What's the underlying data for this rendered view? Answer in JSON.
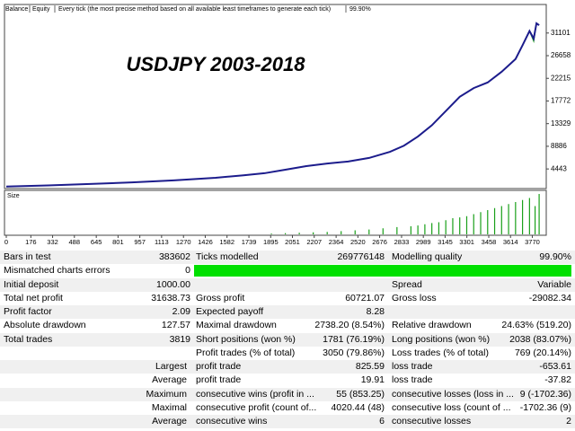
{
  "chart_data": [
    {
      "type": "line",
      "title": "USDJPY 2003-2018",
      "subtitle": "Every tick (the most precise method based on all available least timeframes to generate each tick)",
      "quality": "99.90%",
      "x": [
        0,
        300,
        600,
        900,
        1200,
        1500,
        1700,
        1850,
        2000,
        2150,
        2300,
        2450,
        2600,
        2750,
        2850,
        2950,
        3050,
        3150,
        3250,
        3350,
        3450,
        3550,
        3650,
        3700,
        3750,
        3780,
        3800,
        3819
      ],
      "series": [
        {
          "name": "Balance",
          "color": "#1c1c8c",
          "values": [
            1000,
            1200,
            1500,
            1800,
            2200,
            2700,
            3200,
            3600,
            4300,
            5000,
            5500,
            5900,
            6600,
            7800,
            9000,
            10800,
            13000,
            15800,
            18600,
            20300,
            21400,
            23500,
            26000,
            28700,
            31500,
            30000,
            33000,
            32638
          ]
        },
        {
          "name": "Equity",
          "color": "#2aa02a",
          "values": [
            1000,
            1200,
            1500,
            1800,
            2200,
            2700,
            3200,
            3600,
            4300,
            5000,
            5500,
            5900,
            6600,
            7800,
            9000,
            10800,
            13000,
            15800,
            18600,
            20300,
            21400,
            23500,
            26000,
            28700,
            31500,
            29500,
            33000,
            32638
          ]
        }
      ],
      "xlim": [
        0,
        3870
      ],
      "ylim": [
        594,
        36698
      ],
      "yticks": [
        4443,
        8886,
        13329,
        17772,
        22215,
        26658,
        31101
      ]
    },
    {
      "type": "bar",
      "title": "Size",
      "color": "#1aa01a",
      "x": [
        1900,
        2000,
        2100,
        2200,
        2300,
        2400,
        2500,
        2600,
        2700,
        2800,
        2900,
        2950,
        3000,
        3050,
        3100,
        3150,
        3200,
        3250,
        3300,
        3350,
        3400,
        3450,
        3500,
        3550,
        3600,
        3650,
        3700,
        3750,
        3790,
        3819
      ],
      "values": [
        0.02,
        0.03,
        0.04,
        0.05,
        0.06,
        0.08,
        0.1,
        0.12,
        0.15,
        0.18,
        0.2,
        0.22,
        0.25,
        0.28,
        0.3,
        0.35,
        0.4,
        0.42,
        0.45,
        0.5,
        0.55,
        0.6,
        0.65,
        0.7,
        0.75,
        0.8,
        0.85,
        0.9,
        0.7,
        1.0
      ],
      "xlim": [
        0,
        3870
      ],
      "xticks": [
        0,
        176,
        332,
        488,
        645,
        801,
        957,
        1113,
        1270,
        1426,
        1582,
        1739,
        1895,
        2051,
        2207,
        2364,
        2520,
        2676,
        2833,
        2989,
        3145,
        3301,
        3458,
        3614,
        3770
      ]
    }
  ],
  "table": {
    "rows": [
      {
        "c1": "Bars in test",
        "v1": "383602",
        "c2": "Ticks modelled",
        "v2": "269776148",
        "c3": "Modelling quality",
        "v3": "99.90%"
      },
      {
        "c1": "Mismatched charts errors",
        "v1": "0"
      },
      {
        "c1": "Initial deposit",
        "v1": "1000.00",
        "c3": "Spread",
        "v3": "Variable"
      },
      {
        "c1": "Total net profit",
        "v1": "31638.73",
        "c2": "Gross profit",
        "v2": "60721.07",
        "c3": "Gross loss",
        "v3": "-29082.34"
      },
      {
        "c1": "Profit factor",
        "v1": "2.09",
        "c2": "Expected payoff",
        "v2": "8.28"
      },
      {
        "c1": "Absolute drawdown",
        "v1": "127.57",
        "c2": "Maximal drawdown",
        "v2": "2738.20 (8.54%)",
        "c3": "Relative drawdown",
        "v3": "24.63% (519.20)"
      },
      {
        "c1": "Total trades",
        "v1": "3819",
        "c2": "Short positions (won %)",
        "v2": "1781 (76.19%)",
        "c3": "Long positions (won %)",
        "v3": "2038 (83.07%)"
      },
      {
        "c2": "Profit trades (% of total)",
        "v2": "3050 (79.86%)",
        "c3": "Loss trades (% of total)",
        "v3": "769 (20.14%)"
      },
      {
        "label": "Largest",
        "c2": "profit trade",
        "v2": "825.59",
        "c3": "loss trade",
        "v3": "-653.61"
      },
      {
        "label": "Average",
        "c2": "profit trade",
        "v2": "19.91",
        "c3": "loss trade",
        "v3": "-37.82"
      },
      {
        "label": "Maximum",
        "c2": "consecutive wins (profit in ...",
        "v2": "55 (853.25)",
        "c3": "consecutive losses (loss in ...",
        "v3": "9 (-1702.36)"
      },
      {
        "label": "Maximal",
        "c2": "consecutive profit (count of...",
        "v2": "4020.44 (48)",
        "c3": "consecutive loss (count of ...",
        "v3": "-1702.36 (9)"
      },
      {
        "label": "Average",
        "c2": "consecutive wins",
        "v2": "6",
        "c3": "consecutive losses",
        "v3": "2"
      }
    ]
  }
}
